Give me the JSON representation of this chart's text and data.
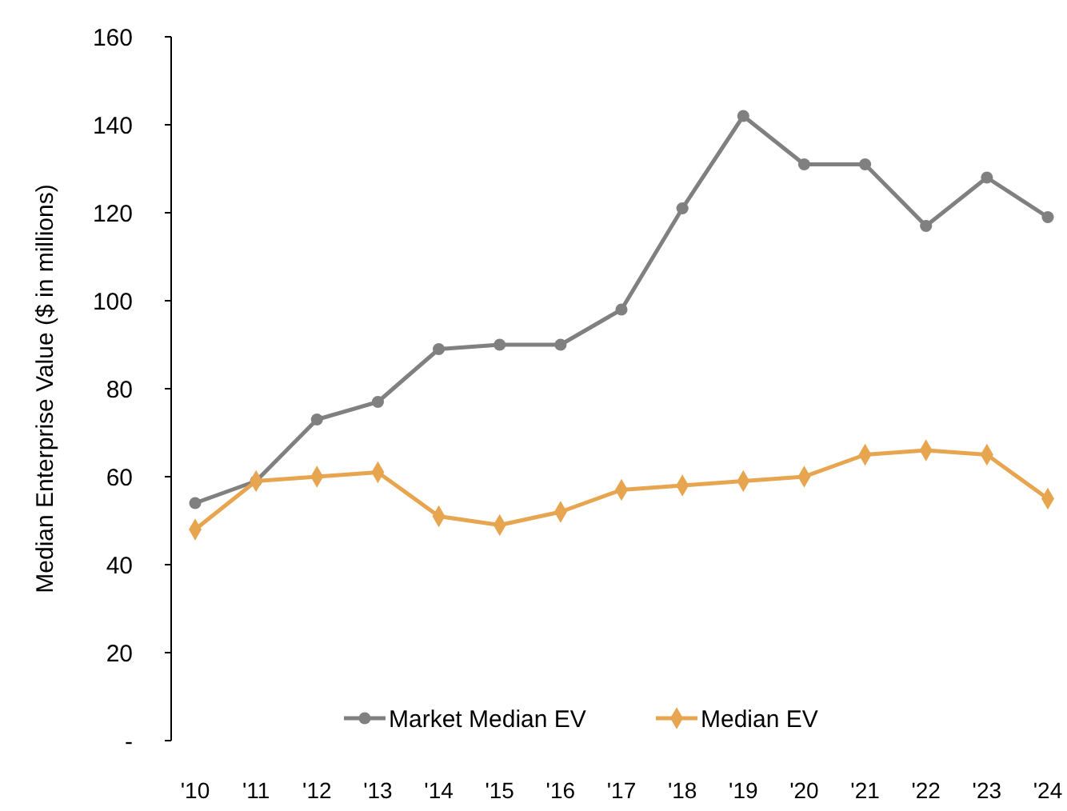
{
  "chart_data": {
    "type": "line",
    "ylabel": "Median Enterprise Value ($ in millions)",
    "categories": [
      "'10",
      "'11",
      "'12",
      "'13",
      "'14",
      "'15",
      "'16",
      "'17",
      "'18",
      "'19",
      "'20",
      "'21",
      "'22",
      "'23",
      "'24"
    ],
    "series": [
      {
        "name": "Market Median EV",
        "color": "#808080",
        "marker": "circle",
        "values": [
          54,
          59,
          73,
          77,
          89,
          90,
          90,
          98,
          121,
          142,
          131,
          131,
          117,
          128,
          119
        ]
      },
      {
        "name": "Median EV",
        "color": "#e8a550",
        "marker": "diamond",
        "values": [
          48,
          59,
          60,
          61,
          51,
          49,
          52,
          57,
          58,
          59,
          60,
          65,
          66,
          65,
          55
        ]
      }
    ],
    "ylim": [
      0,
      160
    ],
    "yticks": [
      {
        "value": 0,
        "label": "-"
      },
      20,
      40,
      60,
      80,
      100,
      120,
      140,
      160
    ],
    "grid": false,
    "legend": "bottom",
    "line_style": "solid"
  }
}
